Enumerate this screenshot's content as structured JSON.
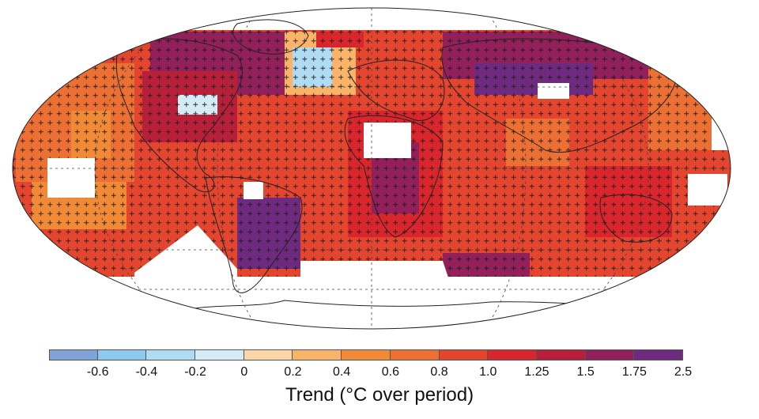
{
  "figure": {
    "colorbar_title": "Trend (°C over period)",
    "bins": [
      {
        "lower": null,
        "upper": -0.6,
        "color": "#7fa3d6"
      },
      {
        "lower": -0.6,
        "upper": -0.4,
        "color": "#8ccbef"
      },
      {
        "lower": -0.4,
        "upper": -0.2,
        "color": "#afdcf2"
      },
      {
        "lower": -0.2,
        "upper": 0,
        "color": "#d3ecf6"
      },
      {
        "lower": 0,
        "upper": 0.2,
        "color": "#fcd6a6"
      },
      {
        "lower": 0.2,
        "upper": 0.4,
        "color": "#f9b469"
      },
      {
        "lower": 0.4,
        "upper": 0.6,
        "color": "#f08a36"
      },
      {
        "lower": 0.6,
        "upper": 0.8,
        "color": "#ec6f34"
      },
      {
        "lower": 0.8,
        "upper": 1.0,
        "color": "#e4452d"
      },
      {
        "lower": 1.0,
        "upper": 1.25,
        "color": "#d8262c"
      },
      {
        "lower": 1.25,
        "upper": 1.5,
        "color": "#b8203a"
      },
      {
        "lower": 1.5,
        "upper": 1.75,
        "color": "#92205a"
      },
      {
        "lower": 1.75,
        "upper": 2.5,
        "color": "#6e2a7e"
      }
    ],
    "tick_labels": [
      "-0.6",
      "-0.4",
      "-0.2",
      "0",
      "0.2",
      "0.4",
      "0.6",
      "0.8",
      "1.0",
      "1.25",
      "1.5",
      "1.75",
      "2.5"
    ]
  }
}
